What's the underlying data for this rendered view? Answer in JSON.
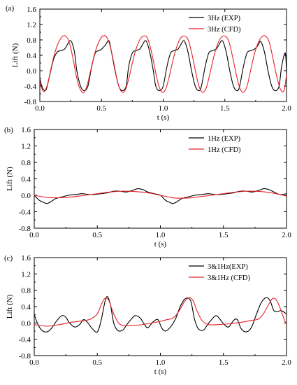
{
  "chart_data": [
    {
      "type": "line",
      "panel_label": "(a)",
      "xlabel": "t (s)",
      "ylabel": "Lift (N)",
      "xlim": [
        0.0,
        2.0
      ],
      "ylim": [
        -0.8,
        1.6
      ],
      "xticks": [
        "0.0",
        "0.5",
        "1.0",
        "1.5",
        "2.0"
      ],
      "yticks": [
        "-0.8",
        "-0.4",
        "0.0",
        "0.4",
        "0.8",
        "1.2",
        "1.6"
      ],
      "legend_position": "top-right",
      "series": [
        {
          "name": "3Hz (EXP)",
          "color": "#000000",
          "x": [
            0.0,
            0.02,
            0.05,
            0.08,
            0.11,
            0.14,
            0.17,
            0.2,
            0.22,
            0.25,
            0.28,
            0.3,
            0.33,
            0.36,
            0.39,
            0.42,
            0.45,
            0.48,
            0.5,
            0.53,
            0.56,
            0.58,
            0.61,
            0.64,
            0.67,
            0.7,
            0.72,
            0.75,
            0.78,
            0.81,
            0.83,
            0.86,
            0.89,
            0.92,
            0.94,
            0.97,
            1.0,
            1.03,
            1.06,
            1.09,
            1.12,
            1.14,
            1.17,
            1.2,
            1.23,
            1.26,
            1.29,
            1.31,
            1.34,
            1.37,
            1.4,
            1.43,
            1.45,
            1.48,
            1.51,
            1.54,
            1.57,
            1.6,
            1.62,
            1.65,
            1.68,
            1.71,
            1.74,
            1.77,
            1.79,
            1.82,
            1.85,
            1.88,
            1.91,
            1.94,
            1.96,
            1.99,
            2.0
          ],
          "y": [
            -0.2,
            -0.44,
            -0.5,
            -0.12,
            0.28,
            0.48,
            0.52,
            0.56,
            0.66,
            0.78,
            0.5,
            0.0,
            -0.4,
            -0.52,
            -0.4,
            0.1,
            0.46,
            0.52,
            0.56,
            0.66,
            0.78,
            0.5,
            0.0,
            -0.4,
            -0.52,
            -0.4,
            0.1,
            0.46,
            0.52,
            0.56,
            0.66,
            0.78,
            0.5,
            0.0,
            -0.4,
            -0.52,
            -0.4,
            0.1,
            0.46,
            0.52,
            0.56,
            0.66,
            0.78,
            0.5,
            0.0,
            -0.4,
            -0.52,
            -0.4,
            0.1,
            0.46,
            0.52,
            0.56,
            0.66,
            0.78,
            0.5,
            0.0,
            -0.4,
            -0.52,
            -0.4,
            0.1,
            0.46,
            0.52,
            0.56,
            0.66,
            0.76,
            0.5,
            0.0,
            -0.4,
            -0.52,
            -0.4,
            0.1,
            0.46,
            -0.1
          ]
        },
        {
          "name": "3Hz (CFD)",
          "color": "#e8212b",
          "x": [
            0.0,
            0.03,
            0.06,
            0.09,
            0.12,
            0.15,
            0.18,
            0.21,
            0.24,
            0.27,
            0.3,
            0.33,
            0.36,
            0.39,
            0.42,
            0.45,
            0.48,
            0.51,
            0.54,
            0.57,
            0.6,
            0.63,
            0.66,
            0.69,
            0.72,
            0.75,
            0.78,
            0.81,
            0.84,
            0.87,
            0.9,
            0.93,
            0.96,
            0.99,
            1.02,
            1.05,
            1.08,
            1.11,
            1.14,
            1.17,
            1.2,
            1.23,
            1.26,
            1.29,
            1.32,
            1.35,
            1.38,
            1.41,
            1.44,
            1.47,
            1.5,
            1.53,
            1.56,
            1.59,
            1.62,
            1.65,
            1.68,
            1.71,
            1.74,
            1.77,
            1.8,
            1.83,
            1.86,
            1.89,
            1.92,
            1.95,
            1.98,
            2.0
          ],
          "y": [
            -0.3,
            -0.54,
            -0.38,
            0.05,
            0.45,
            0.72,
            0.88,
            0.9,
            0.72,
            0.3,
            -0.2,
            -0.5,
            -0.56,
            -0.3,
            0.12,
            0.5,
            0.76,
            0.9,
            0.88,
            0.64,
            0.2,
            -0.28,
            -0.54,
            -0.52,
            -0.22,
            0.2,
            0.56,
            0.8,
            0.9,
            0.86,
            0.56,
            0.1,
            -0.34,
            -0.56,
            -0.48,
            -0.14,
            0.28,
            0.62,
            0.84,
            0.9,
            0.82,
            0.48,
            0.02,
            -0.4,
            -0.56,
            -0.44,
            -0.06,
            0.36,
            0.68,
            0.86,
            0.9,
            0.78,
            0.4,
            -0.06,
            -0.44,
            -0.56,
            -0.4,
            0.02,
            0.44,
            0.72,
            0.88,
            0.9,
            0.74,
            0.32,
            -0.14,
            -0.48,
            -0.52,
            -0.1
          ]
        }
      ]
    },
    {
      "type": "line",
      "panel_label": "(b)",
      "xlabel": "t (s)",
      "ylabel": "Lift (N)",
      "xlim": [
        0.0,
        2.0
      ],
      "ylim": [
        -0.8,
        1.6
      ],
      "xticks": [
        "0.0",
        "0.5",
        "1.0",
        "1.5",
        "2.0"
      ],
      "yticks": [
        "-0.8",
        "-0.4",
        "0.0",
        "0.4",
        "0.8",
        "1.2",
        "1.6"
      ],
      "legend_position": "top-right",
      "series": [
        {
          "name": "1Hz (EXP)",
          "color": "#000000",
          "x": [
            0.0,
            0.04,
            0.08,
            0.1,
            0.13,
            0.17,
            0.22,
            0.27,
            0.33,
            0.38,
            0.43,
            0.48,
            0.53,
            0.58,
            0.63,
            0.68,
            0.73,
            0.78,
            0.82,
            0.86,
            0.9,
            0.95,
            1.0,
            1.04,
            1.08,
            1.1,
            1.13,
            1.17,
            1.22,
            1.27,
            1.33,
            1.38,
            1.43,
            1.48,
            1.53,
            1.58,
            1.63,
            1.68,
            1.73,
            1.78,
            1.82,
            1.86,
            1.9,
            1.95,
            2.0
          ],
          "y": [
            0.0,
            -0.12,
            -0.18,
            -0.2,
            -0.16,
            -0.08,
            -0.04,
            0.0,
            0.02,
            0.04,
            0.02,
            0.02,
            0.04,
            0.06,
            0.1,
            0.1,
            0.08,
            0.12,
            0.16,
            0.14,
            0.08,
            0.04,
            0.0,
            -0.12,
            -0.18,
            -0.2,
            -0.16,
            -0.08,
            -0.04,
            0.0,
            0.02,
            0.04,
            0.02,
            0.02,
            0.04,
            0.06,
            0.1,
            0.1,
            0.08,
            0.12,
            0.16,
            0.14,
            0.08,
            0.02,
            0.04
          ]
        },
        {
          "name": "1Hz (CFD)",
          "color": "#e8212b",
          "x": [
            0.0,
            0.1,
            0.2,
            0.3,
            0.4,
            0.5,
            0.6,
            0.7,
            0.8,
            0.9,
            1.0,
            1.1,
            1.2,
            1.3,
            1.4,
            1.5,
            1.6,
            1.7,
            1.8,
            1.9,
            2.0
          ],
          "y": [
            0.0,
            -0.05,
            -0.06,
            -0.04,
            0.0,
            0.04,
            0.08,
            0.1,
            0.09,
            0.06,
            0.0,
            -0.06,
            -0.07,
            -0.04,
            0.0,
            0.04,
            0.08,
            0.1,
            0.09,
            0.05,
            -0.02
          ]
        }
      ]
    },
    {
      "type": "line",
      "panel_label": "(c)",
      "xlabel": "t (s)",
      "ylabel": "Lift (N)",
      "xlim": [
        0.0,
        2.0
      ],
      "ylim": [
        -0.8,
        1.6
      ],
      "xticks": [
        "0.0",
        "0.5",
        "1.0",
        "1.5",
        "2.0"
      ],
      "yticks": [
        "-0.8",
        "-0.4",
        "0.0",
        "0.4",
        "0.8",
        "1.2",
        "1.6"
      ],
      "legend_position": "top-right",
      "series": [
        {
          "name": "3&1Hz(EXP)",
          "color": "#000000",
          "x": [
            0.0,
            0.03,
            0.06,
            0.1,
            0.14,
            0.18,
            0.22,
            0.25,
            0.28,
            0.32,
            0.36,
            0.39,
            0.42,
            0.46,
            0.5,
            0.53,
            0.57,
            0.6,
            0.63,
            0.66,
            0.7,
            0.73,
            0.76,
            0.8,
            0.84,
            0.87,
            0.9,
            0.94,
            0.98,
            1.01,
            1.04,
            1.08,
            1.12,
            1.16,
            1.2,
            1.24,
            1.27,
            1.3,
            1.34,
            1.37,
            1.4,
            1.44,
            1.47,
            1.5,
            1.54,
            1.58,
            1.61,
            1.64,
            1.68,
            1.72,
            1.76,
            1.8,
            1.84,
            1.87,
            1.9,
            1.93,
            1.96,
            2.0
          ],
          "y": [
            0.2,
            -0.04,
            -0.18,
            -0.22,
            -0.12,
            0.06,
            0.18,
            0.14,
            0.0,
            -0.1,
            -0.04,
            0.08,
            0.02,
            -0.14,
            -0.22,
            0.06,
            0.62,
            0.5,
            0.0,
            -0.18,
            -0.18,
            -0.06,
            0.06,
            0.18,
            0.12,
            -0.02,
            -0.12,
            0.02,
            0.08,
            -0.12,
            -0.2,
            -0.1,
            0.1,
            0.42,
            0.6,
            0.54,
            0.1,
            -0.14,
            -0.18,
            -0.06,
            0.06,
            0.18,
            0.1,
            -0.02,
            -0.1,
            0.06,
            0.08,
            -0.14,
            -0.22,
            -0.12,
            0.2,
            0.5,
            0.62,
            0.54,
            0.3,
            0.28,
            0.3,
            0.22
          ]
        },
        {
          "name": "3&1Hz (CFD)",
          "color": "#e8212b",
          "x": [
            0.0,
            0.1,
            0.2,
            0.3,
            0.4,
            0.45,
            0.5,
            0.53,
            0.56,
            0.59,
            0.62,
            0.66,
            0.7,
            0.8,
            0.9,
            1.0,
            1.05,
            1.1,
            1.15,
            1.19,
            1.23,
            1.26,
            1.29,
            1.33,
            1.38,
            1.45,
            1.55,
            1.65,
            1.72,
            1.78,
            1.82,
            1.86,
            1.89,
            1.92,
            1.95,
            1.98,
            2.0
          ],
          "y": [
            -0.04,
            -0.08,
            -0.04,
            0.02,
            0.06,
            0.1,
            0.22,
            0.44,
            0.6,
            0.56,
            0.3,
            0.04,
            -0.06,
            -0.06,
            -0.02,
            0.04,
            0.08,
            0.12,
            0.3,
            0.52,
            0.62,
            0.54,
            0.3,
            0.06,
            -0.04,
            -0.04,
            -0.02,
            0.02,
            0.06,
            0.1,
            0.24,
            0.46,
            0.6,
            0.56,
            0.36,
            0.1,
            -0.04
          ]
        }
      ]
    }
  ]
}
